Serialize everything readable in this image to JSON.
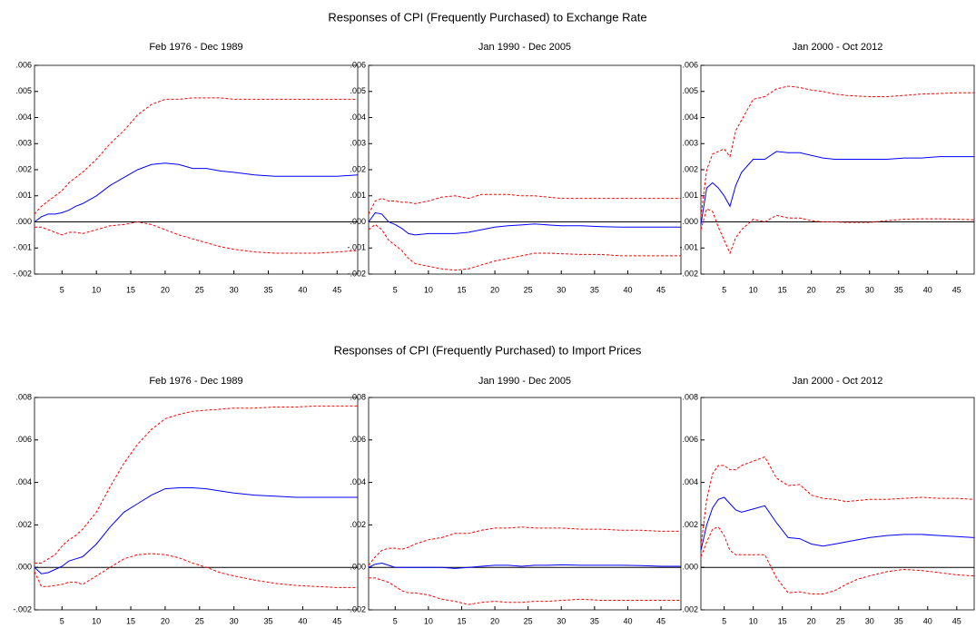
{
  "headings": [
    "Responses of CPI (Frequently Purchased) to Exchange Rate",
    "Responses of CPI (Frequently Purchased) to Import Prices"
  ],
  "chart_data": [
    {
      "type": "line",
      "title": "Feb 1976 - Dec 1989",
      "x": [
        1,
        2,
        3,
        4,
        5,
        6,
        7,
        8,
        10,
        12,
        14,
        16,
        18,
        20,
        22,
        24,
        26,
        28,
        30,
        33,
        36,
        39,
        42,
        45,
        48
      ],
      "xlim": [
        1,
        48
      ],
      "xticks": [
        5,
        10,
        15,
        20,
        25,
        30,
        35,
        40,
        45
      ],
      "ylim": [
        -0.002,
        0.006
      ],
      "yticks": [
        {
          "value": -0.002,
          "label": "-.002"
        },
        {
          "value": -0.001,
          "label": "-.001"
        },
        {
          "value": 0,
          "label": ".000"
        },
        {
          "value": 0.001,
          "label": ".001"
        },
        {
          "value": 0.002,
          "label": ".002"
        },
        {
          "value": 0.003,
          "label": ".003"
        },
        {
          "value": 0.004,
          "label": ".004"
        },
        {
          "value": 0.005,
          "label": ".005"
        },
        {
          "value": 0.006,
          "label": ".006"
        }
      ],
      "zero_line": true,
      "series": [
        {
          "color": "#ff0000",
          "dashed": true,
          "values": [
            0.0003,
            0.0006,
            0.0008,
            0.001,
            0.0012,
            0.0015,
            0.0017,
            0.0019,
            0.0024,
            0.003,
            0.0035,
            0.0041,
            0.0045,
            0.0047,
            0.0047,
            0.00475,
            0.00475,
            0.00475,
            0.0047,
            0.0047,
            0.0047,
            0.0047,
            0.0047,
            0.0047,
            0.0047
          ]
        },
        {
          "color": "#0000ff",
          "dashed": false,
          "values": [
            0,
            0.0002,
            0.0003,
            0.0003,
            0.00035,
            0.00045,
            0.0006,
            0.0007,
            0.001,
            0.0014,
            0.0017,
            0.002,
            0.0022,
            0.00225,
            0.0022,
            0.00205,
            0.00205,
            0.00195,
            0.0019,
            0.0018,
            0.00175,
            0.00175,
            0.00175,
            0.00175,
            0.0018
          ]
        },
        {
          "color": "#ff0000",
          "dashed": true,
          "values": [
            -0.0002,
            -0.0002,
            -0.0003,
            -0.0004,
            -0.0005,
            -0.0004,
            -0.0004,
            -0.00045,
            -0.0003,
            -0.00015,
            -0.0001,
            0,
            -0.0001,
            -0.0003,
            -0.0005,
            -0.00065,
            -0.0008,
            -0.00095,
            -0.00105,
            -0.00115,
            -0.0012,
            -0.0012,
            -0.0012,
            -0.00115,
            -0.0011
          ]
        }
      ]
    },
    {
      "type": "line",
      "title": "Jan 1990 - Dec 2005",
      "x": [
        1,
        2,
        3,
        4,
        5,
        6,
        7,
        8,
        10,
        12,
        14,
        16,
        18,
        20,
        22,
        24,
        26,
        28,
        30,
        33,
        36,
        39,
        42,
        45,
        48
      ],
      "xlim": [
        1,
        48
      ],
      "xticks": [
        5,
        10,
        15,
        20,
        25,
        30,
        35,
        40,
        45
      ],
      "ylim": [
        -0.002,
        0.006
      ],
      "yticks": [
        {
          "value": -0.002,
          "label": "-.002"
        },
        {
          "value": -0.001,
          "label": "-.001"
        },
        {
          "value": 0,
          "label": ".000"
        },
        {
          "value": 0.001,
          "label": ".001"
        },
        {
          "value": 0.002,
          "label": ".002"
        },
        {
          "value": 0.003,
          "label": ".003"
        },
        {
          "value": 0.004,
          "label": ".004"
        },
        {
          "value": 0.005,
          "label": ".005"
        },
        {
          "value": 0.006,
          "label": ".006"
        }
      ],
      "zero_line": true,
      "series": [
        {
          "color": "#ff0000",
          "dashed": true,
          "values": [
            0.0003,
            0.0008,
            0.0009,
            0.0008,
            0.0008,
            0.00075,
            0.00075,
            0.0007,
            0.0008,
            0.00095,
            0.001,
            0.0009,
            0.00105,
            0.00105,
            0.00105,
            0.001,
            0.001,
            0.00095,
            0.0009,
            0.0009,
            0.0009,
            0.0009,
            0.0009,
            0.0009,
            0.0009
          ]
        },
        {
          "color": "#0000ff",
          "dashed": false,
          "values": [
            0,
            0.00035,
            0.0003,
            0,
            -0.0001,
            -0.00025,
            -0.00045,
            -0.0005,
            -0.00045,
            -0.00045,
            -0.00045,
            -0.0004,
            -0.0003,
            -0.0002,
            -0.00015,
            -0.00012,
            -8e-05,
            -0.00012,
            -0.00015,
            -0.00015,
            -0.00018,
            -0.0002,
            -0.0002,
            -0.0002,
            -0.0002
          ]
        },
        {
          "color": "#ff0000",
          "dashed": true,
          "values": [
            -0.0003,
            -0.0001,
            -0.0003,
            -0.0007,
            -0.0009,
            -0.0011,
            -0.0014,
            -0.0016,
            -0.0017,
            -0.0018,
            -0.00185,
            -0.0018,
            -0.00165,
            -0.0015,
            -0.0014,
            -0.0013,
            -0.0012,
            -0.0012,
            -0.00122,
            -0.00125,
            -0.00125,
            -0.0013,
            -0.0013,
            -0.0013,
            -0.0013
          ]
        }
      ]
    },
    {
      "type": "line",
      "title": "Jan 2000 - Oct 2012",
      "x": [
        1,
        2,
        3,
        4,
        5,
        6,
        7,
        8,
        10,
        12,
        14,
        16,
        18,
        20,
        22,
        24,
        26,
        28,
        30,
        33,
        36,
        39,
        42,
        45,
        48
      ],
      "xlim": [
        1,
        48
      ],
      "xticks": [
        5,
        10,
        15,
        20,
        25,
        30,
        35,
        40,
        45
      ],
      "ylim": [
        -0.002,
        0.006
      ],
      "yticks": [
        {
          "value": -0.002,
          "label": "-.002"
        },
        {
          "value": -0.001,
          "label": "-.001"
        },
        {
          "value": 0,
          "label": ".000"
        },
        {
          "value": 0.001,
          "label": ".001"
        },
        {
          "value": 0.002,
          "label": ".002"
        },
        {
          "value": 0.003,
          "label": ".003"
        },
        {
          "value": 0.004,
          "label": ".004"
        },
        {
          "value": 0.005,
          "label": ".005"
        },
        {
          "value": 0.006,
          "label": ".006"
        }
      ],
      "zero_line": true,
      "series": [
        {
          "color": "#ff0000",
          "dashed": true,
          "values": [
            0.0002,
            0.002,
            0.0026,
            0.0027,
            0.0028,
            0.0025,
            0.0035,
            0.0039,
            0.0047,
            0.0048,
            0.0051,
            0.0052,
            0.00515,
            0.00505,
            0.005,
            0.0049,
            0.00485,
            0.00482,
            0.0048,
            0.0048,
            0.00485,
            0.0049,
            0.00492,
            0.00495,
            0.00495
          ]
        },
        {
          "color": "#0000ff",
          "dashed": false,
          "values": [
            -0.0001,
            0.0013,
            0.0015,
            0.0013,
            0.001,
            0.0006,
            0.0014,
            0.0019,
            0.0024,
            0.0024,
            0.0027,
            0.00265,
            0.00265,
            0.00255,
            0.00245,
            0.0024,
            0.0024,
            0.0024,
            0.0024,
            0.0024,
            0.00245,
            0.00245,
            0.0025,
            0.0025,
            0.0025
          ]
        },
        {
          "color": "#ff0000",
          "dashed": true,
          "values": [
            -0.0003,
            0.0005,
            0.0004,
            -0.0002,
            -0.0007,
            -0.0012,
            -0.0006,
            -0.0003,
            0.0001,
            0,
            0.00025,
            0.00015,
            0.00015,
            5e-05,
            0,
            0,
            -2e-05,
            -2e-05,
            -2e-05,
            5e-05,
            0.0001,
            0.00012,
            0.00012,
            0.0001,
            8e-05
          ]
        }
      ]
    },
    {
      "type": "line",
      "title": "Feb 1976 - Dec 1989",
      "x": [
        1,
        2,
        3,
        4,
        5,
        6,
        7,
        8,
        10,
        12,
        14,
        16,
        18,
        20,
        22,
        24,
        26,
        28,
        30,
        33,
        36,
        39,
        42,
        45,
        48
      ],
      "xlim": [
        1,
        48
      ],
      "xticks": [
        5,
        10,
        15,
        20,
        25,
        30,
        35,
        40,
        45
      ],
      "ylim": [
        -0.002,
        0.008
      ],
      "yticks": [
        {
          "value": -0.002,
          "label": "-.002"
        },
        {
          "value": 0,
          "label": ".000"
        },
        {
          "value": 0.002,
          "label": ".002"
        },
        {
          "value": 0.004,
          "label": ".004"
        },
        {
          "value": 0.006,
          "label": ".006"
        },
        {
          "value": 0.008,
          "label": ".008"
        }
      ],
      "zero_line": true,
      "series": [
        {
          "color": "#ff0000",
          "dashed": true,
          "values": [
            0.0002,
            0.0002,
            0.0004,
            0.0006,
            0.001,
            0.0013,
            0.0015,
            0.0018,
            0.0026,
            0.0038,
            0.0049,
            0.0058,
            0.0065,
            0.007,
            0.0072,
            0.00735,
            0.0074,
            0.00745,
            0.0075,
            0.0075,
            0.00755,
            0.00755,
            0.0076,
            0.0076,
            0.0076
          ]
        },
        {
          "color": "#0000ff",
          "dashed": false,
          "values": [
            0,
            -0.0003,
            -0.00025,
            -0.0001,
            5e-05,
            0.0003,
            0.0004,
            0.0005,
            0.0011,
            0.0019,
            0.0026,
            0.003,
            0.0034,
            0.0037,
            0.00375,
            0.00375,
            0.0037,
            0.0036,
            0.0035,
            0.0034,
            0.00335,
            0.0033,
            0.0033,
            0.0033,
            0.0033
          ]
        },
        {
          "color": "#ff0000",
          "dashed": true,
          "values": [
            -0.0002,
            -0.0009,
            -0.0009,
            -0.00085,
            -0.0008,
            -0.0007,
            -0.0007,
            -0.0008,
            -0.0004,
            0,
            0.0004,
            0.0006,
            0.00065,
            0.0006,
            0.00045,
            0.0002,
            0,
            -0.00025,
            -0.0004,
            -0.0006,
            -0.00075,
            -0.00085,
            -0.0009,
            -0.00095,
            -0.00095
          ]
        }
      ]
    },
    {
      "type": "line",
      "title": "Jan 1990 - Dec 2005",
      "x": [
        1,
        2,
        3,
        4,
        5,
        6,
        7,
        8,
        10,
        12,
        14,
        16,
        18,
        20,
        22,
        24,
        26,
        28,
        30,
        33,
        36,
        39,
        42,
        45,
        48
      ],
      "xlim": [
        1,
        48
      ],
      "xticks": [
        5,
        10,
        15,
        20,
        25,
        30,
        35,
        40,
        45
      ],
      "ylim": [
        -0.002,
        0.008
      ],
      "yticks": [
        {
          "value": -0.002,
          "label": "-.002"
        },
        {
          "value": 0,
          "label": ".000"
        },
        {
          "value": 0.002,
          "label": ".002"
        },
        {
          "value": 0.004,
          "label": ".004"
        },
        {
          "value": 0.006,
          "label": ".006"
        },
        {
          "value": 0.008,
          "label": ".008"
        }
      ],
      "zero_line": true,
      "series": [
        {
          "color": "#ff0000",
          "dashed": true,
          "values": [
            0.0001,
            0.0005,
            0.0008,
            0.0009,
            0.0009,
            0.00085,
            0.00095,
            0.0011,
            0.0013,
            0.0014,
            0.0016,
            0.0016,
            0.00175,
            0.00185,
            0.00185,
            0.0019,
            0.00185,
            0.00185,
            0.00185,
            0.0018,
            0.0018,
            0.00175,
            0.00175,
            0.0017,
            0.0017
          ]
        },
        {
          "color": "#0000ff",
          "dashed": false,
          "values": [
            0,
            0.00015,
            0.0002,
            0.0001,
            0,
            0,
            0,
            0,
            0,
            0,
            -5e-05,
            0,
            5e-05,
            0.0001,
            0.0001,
            5e-05,
            0.0001,
            0.0001,
            0.00012,
            0.0001,
            0.0001,
            0.0001,
            8e-05,
            5e-05,
            5e-05
          ]
        },
        {
          "color": "#ff0000",
          "dashed": true,
          "values": [
            -0.0005,
            -0.0005,
            -0.0006,
            -0.0007,
            -0.0009,
            -0.0011,
            -0.0012,
            -0.0012,
            -0.0013,
            -0.0015,
            -0.0016,
            -0.00175,
            -0.00165,
            -0.0016,
            -0.00165,
            -0.00165,
            -0.0016,
            -0.0016,
            -0.00155,
            -0.0015,
            -0.00155,
            -0.00155,
            -0.00155,
            -0.00155,
            -0.00155
          ]
        }
      ]
    },
    {
      "type": "line",
      "title": "Jan 2000 - Oct 2012",
      "x": [
        1,
        2,
        3,
        4,
        5,
        6,
        7,
        8,
        10,
        12,
        14,
        16,
        18,
        20,
        22,
        24,
        26,
        28,
        30,
        33,
        36,
        39,
        42,
        45,
        48
      ],
      "xlim": [
        1,
        48
      ],
      "xticks": [
        5,
        10,
        15,
        20,
        25,
        30,
        35,
        40,
        45
      ],
      "ylim": [
        -0.002,
        0.008
      ],
      "yticks": [
        {
          "value": -0.002,
          "label": "-.002"
        },
        {
          "value": 0,
          "label": ".000"
        },
        {
          "value": 0.002,
          "label": ".002"
        },
        {
          "value": 0.004,
          "label": ".004"
        },
        {
          "value": 0.006,
          "label": ".006"
        },
        {
          "value": 0.008,
          "label": ".008"
        }
      ],
      "zero_line": true,
      "series": [
        {
          "color": "#ff0000",
          "dashed": true,
          "values": [
            0.001,
            0.0032,
            0.0044,
            0.0048,
            0.0048,
            0.0046,
            0.0046,
            0.0048,
            0.005,
            0.0052,
            0.0042,
            0.00385,
            0.0039,
            0.0034,
            0.00325,
            0.0032,
            0.0031,
            0.00315,
            0.0032,
            0.0032,
            0.00325,
            0.0033,
            0.00325,
            0.00325,
            0.0032
          ]
        },
        {
          "color": "#0000ff",
          "dashed": false,
          "values": [
            0.0008,
            0.002,
            0.0028,
            0.0032,
            0.0033,
            0.003,
            0.0027,
            0.0026,
            0.00275,
            0.0029,
            0.0021,
            0.0014,
            0.00135,
            0.0011,
            0.001,
            0.0011,
            0.0012,
            0.0013,
            0.0014,
            0.0015,
            0.00155,
            0.00155,
            0.0015,
            0.00145,
            0.0014
          ]
        },
        {
          "color": "#ff0000",
          "dashed": true,
          "values": [
            0.0005,
            0.0012,
            0.0018,
            0.0019,
            0.0015,
            0.0008,
            0.0006,
            0.0006,
            0.0006,
            0.0006,
            -0.0005,
            -0.0012,
            -0.00115,
            -0.00125,
            -0.00125,
            -0.0011,
            -0.0008,
            -0.00055,
            -0.0004,
            -0.0002,
            -0.0001,
            -0.00015,
            -0.00025,
            -0.00035,
            -0.0004
          ]
        }
      ]
    }
  ]
}
